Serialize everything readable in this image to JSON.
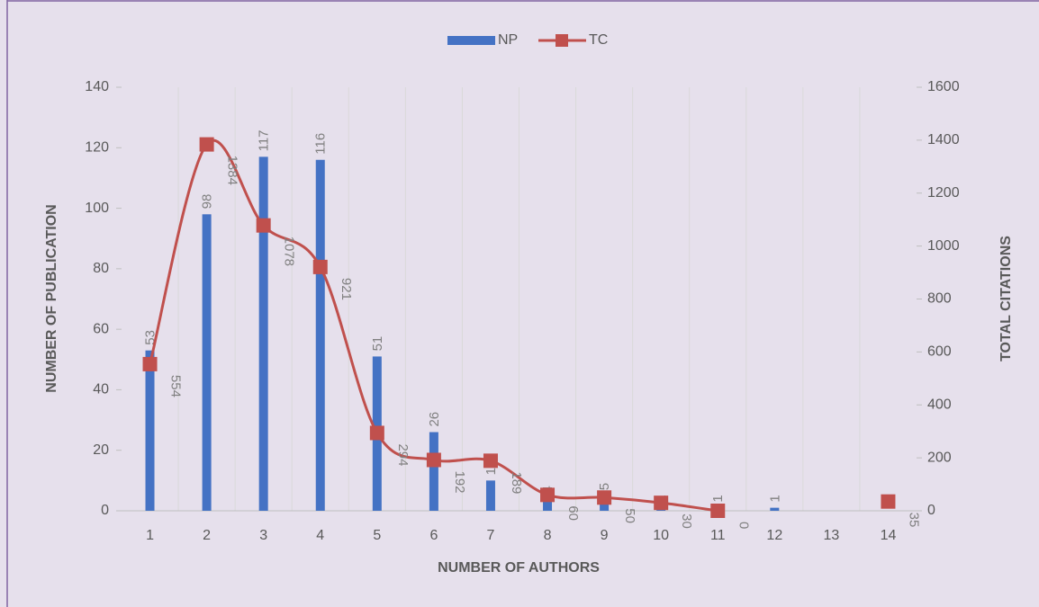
{
  "chart_data": {
    "type": "bar_line",
    "xlabel": "NUMBER OF AUTHORS",
    "ylabel": "NUMBER OF PUBLICATION",
    "y2label": "TOTAL CITATIONS",
    "categories": [
      "1",
      "2",
      "3",
      "4",
      "5",
      "6",
      "7",
      "8",
      "9",
      "10",
      "11",
      "12",
      "13",
      "14"
    ],
    "series": [
      {
        "name": "NP",
        "type": "bar",
        "color": "#4472c4",
        "values": [
          53,
          98,
          117,
          116,
          51,
          26,
          10,
          4,
          5,
          1,
          1,
          1,
          null,
          null
        ]
      },
      {
        "name": "TC",
        "type": "line",
        "axis": "y2",
        "color": "#c0504d",
        "values": [
          554,
          1384,
          1078,
          921,
          294,
          192,
          189,
          60,
          50,
          30,
          0,
          null,
          null,
          35
        ]
      }
    ],
    "ylim": [
      0,
      140
    ],
    "yticks": [
      0,
      20,
      40,
      60,
      80,
      100,
      120,
      140
    ],
    "y2lim": [
      0,
      1600
    ],
    "y2ticks": [
      0,
      200,
      400,
      600,
      800,
      1000,
      1200,
      1400,
      1600
    ],
    "legend": "top"
  }
}
